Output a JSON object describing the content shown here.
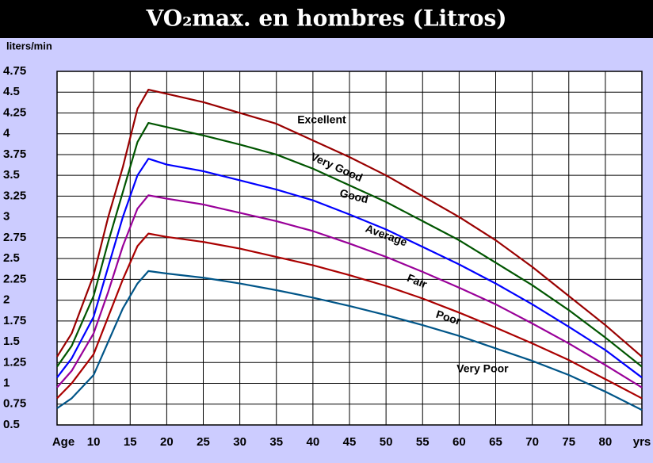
{
  "chart_data": {
    "type": "line",
    "title": "VO₂max. en hombres (Litros)",
    "y_label": "liters/min",
    "x": [
      5,
      7,
      10,
      12,
      14,
      16,
      17.5,
      20,
      25,
      30,
      35,
      40,
      45,
      50,
      55,
      60,
      65,
      70,
      75,
      80,
      85
    ],
    "series": [
      {
        "color": "#990000",
        "values": [
          1.32,
          1.6,
          2.3,
          3.0,
          3.6,
          4.3,
          4.53,
          4.48,
          4.38,
          4.25,
          4.12,
          3.92,
          3.72,
          3.5,
          3.25,
          3.0,
          2.72,
          2.4,
          2.05,
          1.7,
          1.32
        ]
      },
      {
        "color": "#005500",
        "values": [
          1.2,
          1.45,
          2.05,
          2.7,
          3.3,
          3.9,
          4.13,
          4.08,
          3.98,
          3.87,
          3.75,
          3.58,
          3.38,
          3.18,
          2.95,
          2.72,
          2.45,
          2.18,
          1.88,
          1.55,
          1.2
        ]
      },
      {
        "color": "#0000ff",
        "values": [
          1.07,
          1.3,
          1.8,
          2.4,
          3.0,
          3.5,
          3.7,
          3.63,
          3.55,
          3.44,
          3.33,
          3.2,
          3.03,
          2.85,
          2.64,
          2.43,
          2.2,
          1.95,
          1.68,
          1.4,
          1.07
        ]
      },
      {
        "color": "#990099",
        "values": [
          0.95,
          1.15,
          1.6,
          2.1,
          2.65,
          3.1,
          3.26,
          3.22,
          3.15,
          3.05,
          2.95,
          2.83,
          2.68,
          2.52,
          2.34,
          2.15,
          1.95,
          1.72,
          1.48,
          1.22,
          0.95
        ]
      },
      {
        "color": "#aa0000",
        "values": [
          0.82,
          1.0,
          1.35,
          1.8,
          2.25,
          2.65,
          2.8,
          2.76,
          2.7,
          2.62,
          2.52,
          2.42,
          2.3,
          2.17,
          2.02,
          1.85,
          1.67,
          1.48,
          1.28,
          1.05,
          0.82
        ]
      },
      {
        "color": "#005588",
        "values": [
          0.7,
          0.82,
          1.1,
          1.5,
          1.9,
          2.2,
          2.35,
          2.32,
          2.27,
          2.2,
          2.12,
          2.03,
          1.93,
          1.82,
          1.7,
          1.57,
          1.42,
          1.27,
          1.1,
          0.9,
          0.68
        ]
      }
    ],
    "annotations": [
      {
        "text": "Excellent",
        "x": 41.2,
        "y": 4.16
      },
      {
        "text": "Very Good",
        "x": 43.2,
        "y": 3.59
      },
      {
        "text": "Good",
        "x": 45.6,
        "y": 3.24
      },
      {
        "text": "Average",
        "x": 50,
        "y": 2.77
      },
      {
        "text": "Fair",
        "x": 54.2,
        "y": 2.22
      },
      {
        "text": "Poor",
        "x": 58.5,
        "y": 1.78
      },
      {
        "text": "Very Poor",
        "x": 63.2,
        "y": 1.17
      }
    ],
    "xlim": [
      5,
      85
    ],
    "xticks": [
      {
        "value": 5,
        "label": "Age"
      },
      10,
      15,
      20,
      25,
      30,
      35,
      40,
      45,
      50,
      55,
      60,
      65,
      70,
      75,
      80,
      {
        "value": 85,
        "label": "yrs"
      }
    ],
    "ylim": [
      0.5,
      4.75
    ],
    "yticks": [
      0.5,
      0.75,
      1,
      1.25,
      1.5,
      1.75,
      2,
      2.25,
      2.5,
      2.75,
      3,
      3.25,
      3.5,
      3.75,
      4,
      4.25,
      4.5,
      4.75
    ],
    "grid": true
  }
}
